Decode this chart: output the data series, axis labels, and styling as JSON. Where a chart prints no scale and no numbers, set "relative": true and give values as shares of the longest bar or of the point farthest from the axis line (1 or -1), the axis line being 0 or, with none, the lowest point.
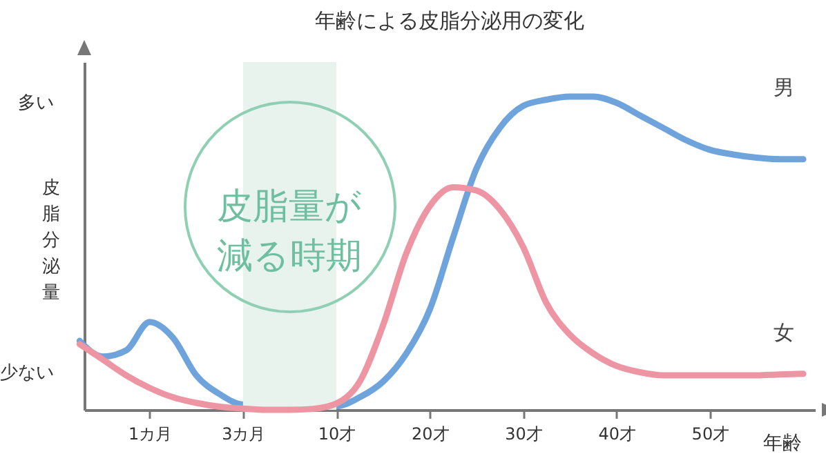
{
  "chart_data": {
    "type": "line",
    "title": "年齢による皮脂分泌用の変化",
    "xlabel": "年齢",
    "ylabel": "皮脂分泌量",
    "relative": true,
    "grid": false,
    "categories": [
      null,
      null,
      null,
      "1カ月",
      null,
      null,
      null,
      "3カ月",
      null,
      null,
      null,
      "10才",
      null,
      null,
      null,
      "20才",
      null,
      null,
      null,
      "30才",
      null,
      null,
      null,
      "40才",
      null,
      null,
      null,
      "50才",
      null,
      null,
      null,
      null
    ],
    "annotations": [
      "多い",
      "少ない"
    ],
    "bands": [
      {
        "axis": "x",
        "from": "3カ月",
        "to": "10才",
        "label": "皮脂量が減る時期",
        "color": "#e9f3ee"
      }
    ],
    "series": [
      {
        "name": "男",
        "color": "#6fa3dc",
        "values": [
          0.22,
          0.17,
          0.19,
          0.28,
          0.23,
          0.11,
          0.05,
          0.017,
          null,
          null,
          null,
          0.012,
          0.04,
          0.09,
          0.18,
          0.32,
          0.55,
          0.77,
          0.9,
          0.97,
          0.99,
          1,
          1,
          0.98,
          0.94,
          0.9,
          0.86,
          0.83,
          0.815,
          0.805,
          0.8,
          0.8
        ]
      },
      {
        "name": "女",
        "color": "#ee95a3",
        "values": [
          0.21,
          0.16,
          0.11,
          0.07,
          0.04,
          0.022,
          0.01,
          0.004,
          0,
          0,
          0.003,
          0.02,
          0.09,
          0.27,
          0.5,
          0.65,
          0.71,
          0.7,
          0.64,
          0.52,
          0.34,
          0.24,
          0.18,
          0.14,
          0.12,
          0.11,
          0.11,
          0.11,
          0.11,
          0.11,
          0.113,
          0.115
        ]
      }
    ]
  }
}
